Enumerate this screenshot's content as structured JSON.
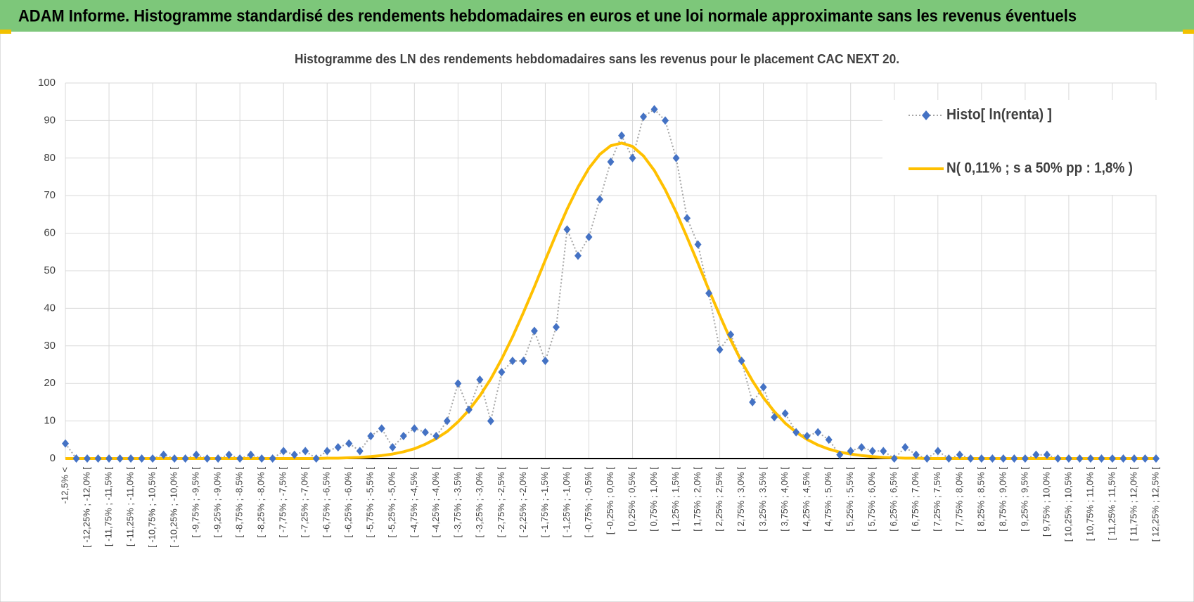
{
  "header": {
    "title": "ADAM Informe. Histogramme standardisé des rendements hebdomadaires en euros et une loi normale approximante sans les revenus éventuels"
  },
  "chart_data": {
    "type": "line",
    "title": "Histogramme des LN des rendements hebdomadaires sans les revenus pour le placement CAC NEXT 20.",
    "categories": [
      "-12,5% <",
      null,
      "[ -12,25% ; -12,0% [",
      null,
      "[ -11,75% ; -11,5% [",
      null,
      "[ -11,25% ; -11,0% [",
      null,
      "[ -10,75% ; -10,5% [",
      null,
      "[ -10,25% ; -10,0% [",
      null,
      "[ -9,75% ; -9,5% [",
      null,
      "[ -9,25% ; -9,0% [",
      null,
      "[ -8,75% ; -8,5% [",
      null,
      "[ -8,25% ; -8,0% [",
      null,
      "[ -7,75% ; -7,5% [",
      null,
      "[ -7,25% ; -7,0% [",
      null,
      "[ -6,75% ; -6,5% [",
      null,
      "[ -6,25% ; -6,0% [",
      null,
      "[ -5,75% ; -5,5% [",
      null,
      "[ -5,25% ; -5,0% [",
      null,
      "[ -4,75% ; -4,5% [",
      null,
      "[ -4,25% ; -4,0% [",
      null,
      "[ -3,75% ; -3,5% [",
      null,
      "[ -3,25% ; -3,0% [",
      null,
      "[ -2,75% ; -2,5% [",
      null,
      "[ -2,25% ; -2,0% [",
      null,
      "[ -1,75% ; -1,5% [",
      null,
      "[ -1,25% ; -1,0% [",
      null,
      "[ -0,75% ; -0,5% [",
      null,
      "[ -0,25% ; 0,0% [",
      null,
      "[ 0,25% ; 0,5% [",
      null,
      "[ 0,75% ; 1,0% [",
      null,
      "[ 1,25% ; 1,5% [",
      null,
      "[ 1,75% ; 2,0% [",
      null,
      "[ 2,25% ; 2,5% [",
      null,
      "[ 2,75% ; 3,0% [",
      null,
      "[ 3,25% ; 3,5% [",
      null,
      "[ 3,75% ; 4,0% [",
      null,
      "[ 4,25% ; 4,5% [",
      null,
      "[ 4,75% ; 5,0% [",
      null,
      "[ 5,25% ; 5,5% [",
      null,
      "[ 5,75% ; 6,0% [",
      null,
      "[ 6,25% ; 6,5% [",
      null,
      "[ 6,75% ; 7,0% [",
      null,
      "[ 7,25% ; 7,5% [",
      null,
      "[ 7,75% ; 8,0% [",
      null,
      "[ 8,25% ; 8,5% [",
      null,
      "[ 8,75% ; 9,0% [",
      null,
      "[ 9,25% ; 9,5% [",
      null,
      "[ 9,75% ; 10,0% [",
      null,
      "[ 10,25% ; 10,5% [",
      null,
      "[ 10,75% ; 11,0% [",
      null,
      "[ 11,25% ; 11,5% [",
      null,
      "[ 11,75% ; 12,0% [",
      null,
      "[ 12,25% ; 12,5% ["
    ],
    "series": [
      {
        "name": "Histo[ ln(renta) ]",
        "color": "#4472c4",
        "line_color": "#a6a6a6",
        "values": [
          4,
          0,
          0,
          0,
          0,
          0,
          0,
          0,
          0,
          1,
          0,
          0,
          1,
          0,
          0,
          1,
          0,
          1,
          0,
          0,
          2,
          1,
          2,
          0,
          2,
          3,
          4,
          2,
          6,
          8,
          3,
          6,
          8,
          7,
          6,
          10,
          20,
          13,
          21,
          10,
          23,
          26,
          26,
          34,
          26,
          35,
          61,
          54,
          59,
          69,
          79,
          86,
          80,
          91,
          93,
          90,
          80,
          64,
          57,
          44,
          29,
          33,
          26,
          15,
          19,
          11,
          12,
          7,
          6,
          7,
          5,
          1,
          2,
          3,
          2,
          2,
          0,
          3,
          1,
          0,
          2,
          0,
          1,
          0,
          0,
          0,
          0,
          0,
          0,
          1,
          1,
          0,
          0,
          0,
          0,
          0,
          0,
          0,
          0,
          0,
          0
        ]
      },
      {
        "name": "N( 0,11% ; s a 50% pp : 1,8% )",
        "color": "#ffc000",
        "values": [
          0,
          0,
          0,
          0,
          0,
          0,
          0,
          0,
          0,
          0,
          0,
          0,
          0,
          0,
          0,
          0,
          0,
          0,
          0,
          0,
          0,
          0,
          0,
          0,
          0.1,
          0.1,
          0.2,
          0.3,
          0.5,
          0.8,
          1.2,
          1.8,
          2.6,
          3.8,
          5.3,
          7.2,
          9.8,
          12.9,
          16.7,
          21.2,
          26.5,
          32.4,
          38.9,
          45.7,
          52.8,
          59.8,
          66.4,
          72.3,
          77.3,
          81.0,
          83.3,
          84.0,
          83.1,
          80.6,
          76.7,
          71.6,
          65.6,
          58.9,
          52.0,
          44.9,
          38.1,
          31.6,
          25.8,
          20.7,
          16.2,
          12.5,
          9.4,
          7.0,
          5.1,
          3.6,
          2.5,
          1.7,
          1.2,
          0.8,
          0.5,
          0.3,
          0.2,
          0.1,
          0.1,
          0,
          0,
          0,
          0,
          0,
          0,
          0,
          0,
          0,
          0,
          0,
          0,
          0,
          0,
          0,
          0,
          0,
          0,
          0,
          0,
          0,
          0
        ]
      }
    ],
    "ylim": [
      0,
      100
    ],
    "yticks": [
      0,
      10,
      20,
      30,
      40,
      50,
      60,
      70,
      80,
      90,
      100
    ],
    "grid": true,
    "legend": "upper right"
  }
}
